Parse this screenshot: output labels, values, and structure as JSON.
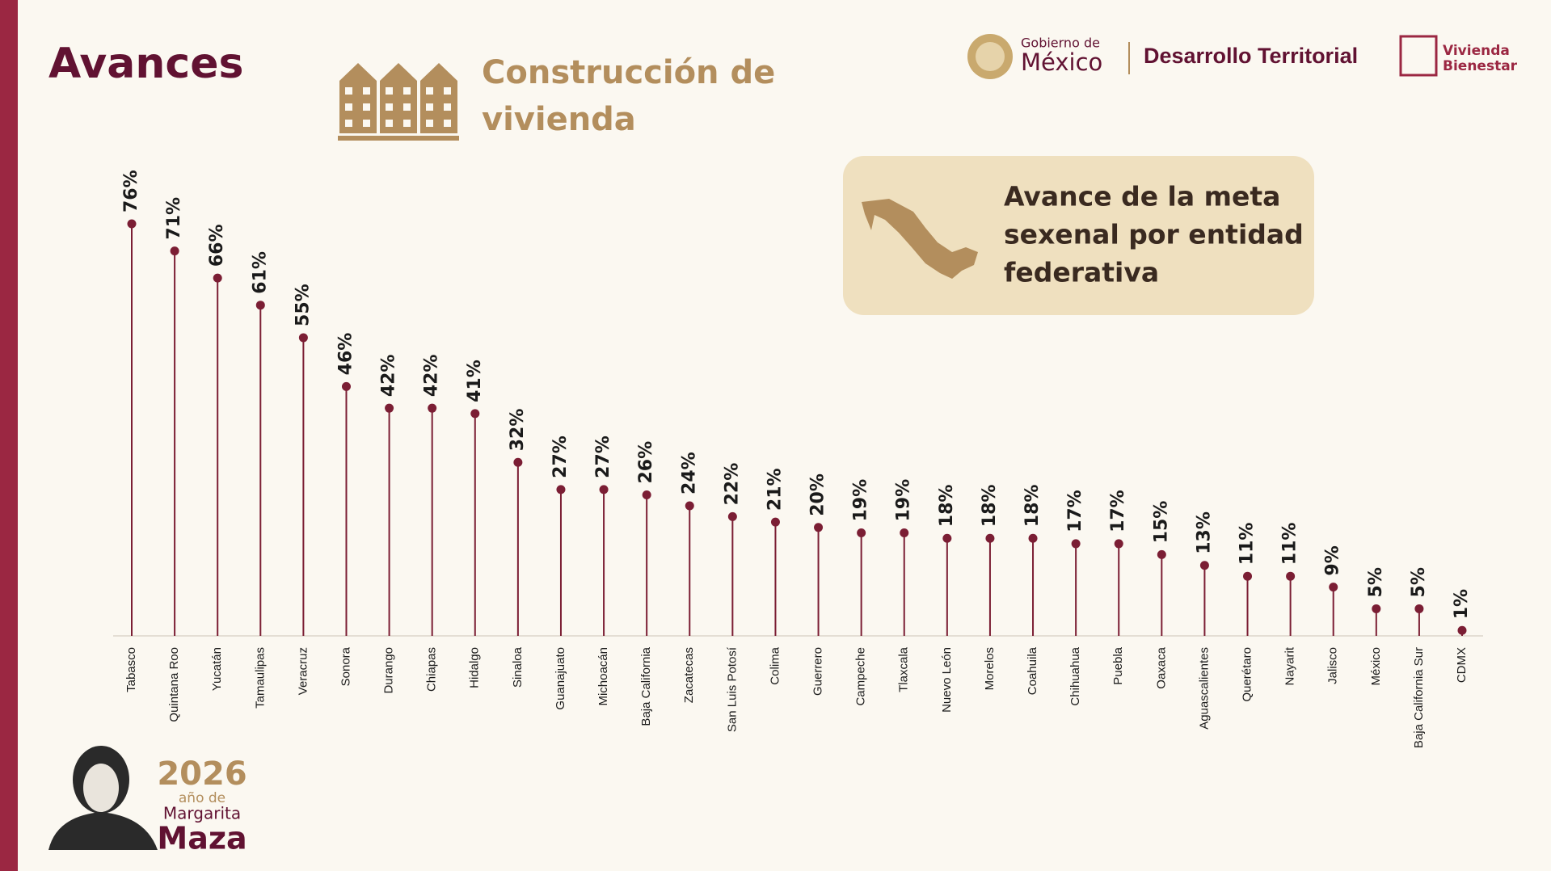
{
  "header": {
    "title": "Avances",
    "section": [
      "Construcción de",
      "vivienda"
    ]
  },
  "logos": {
    "government": [
      "Gobierno de",
      "México"
    ],
    "agency": "Desarrollo Territorial",
    "program": [
      "Vivienda",
      "Bienestar"
    ]
  },
  "footer": {
    "year": "2026",
    "caption": [
      "año de",
      "Margarita",
      "Maza"
    ]
  },
  "chart_data": {
    "type": "lollipop",
    "title": [
      "Avance de la meta",
      "sexenal por entidad",
      "federativa"
    ],
    "color": "#7b1e34",
    "categories": [
      "Tabasco",
      "Quintana Roo",
      "Yucatán",
      "Tamaulipas",
      "Veracruz",
      "Sonora",
      "Durango",
      "Chiapas",
      "Hidalgo",
      "Sinaloa",
      "Guanajuato",
      "Michoacán",
      "Baja California",
      "Zacatecas",
      "San Luis Potosí",
      "Colima",
      "Guerrero",
      "Campeche",
      "Tlaxcala",
      "Nuevo León",
      "Morelos",
      "Coahuila",
      "Chihuahua",
      "Puebla",
      "Oaxaca",
      "Aguascalientes",
      "Querétaro",
      "Nayarit",
      "Jalisco",
      "México",
      "Baja California Sur",
      "CDMX"
    ],
    "values": [
      76,
      71,
      66,
      61,
      55,
      46,
      42,
      42,
      41,
      32,
      27,
      27,
      26,
      24,
      22,
      21,
      20,
      19,
      19,
      18,
      18,
      18,
      17,
      17,
      15,
      13,
      11,
      11,
      9,
      5,
      5,
      1
    ],
    "value_labels": [
      "76%",
      "71%",
      "66%",
      "61%",
      "55%",
      "46%",
      "42%",
      "42%",
      "41%",
      "32%",
      "27%",
      "27%",
      "26%",
      "24%",
      "22%",
      "21%",
      "20%",
      "19%",
      "19%",
      "18%",
      "18%",
      "18%",
      "17%",
      "17%",
      "15%",
      "13%",
      "11%",
      "11%",
      "9%",
      "5%",
      "5%",
      "1%"
    ]
  }
}
